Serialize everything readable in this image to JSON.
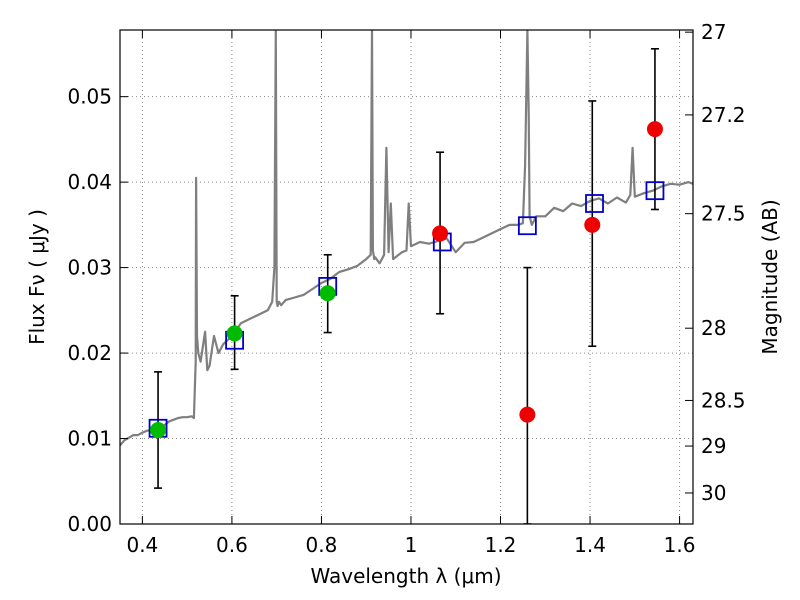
{
  "chart_data": {
    "type": "scatter",
    "xlabel": "Wavelength  λ (μm)",
    "ylabel": "Flux  Fν  ( μJy )",
    "ylabel_right": "Magnitude (AB)",
    "xlim": [
      0.35,
      1.63
    ],
    "ylim": [
      0.0,
      0.0578
    ],
    "grid": true,
    "x_ticks": [
      {
        "value": 0.4,
        "label": "0.4"
      },
      {
        "value": 0.6,
        "label": "0.6"
      },
      {
        "value": 0.8,
        "label": "0.8"
      },
      {
        "value": 1.0,
        "label": "1"
      },
      {
        "value": 1.2,
        "label": "1.2"
      },
      {
        "value": 1.4,
        "label": "1.4"
      },
      {
        "value": 1.6,
        "label": "1.6"
      }
    ],
    "y_ticks": [
      {
        "value": 0.0,
        "label": "0.00"
      },
      {
        "value": 0.01,
        "label": "0.01"
      },
      {
        "value": 0.02,
        "label": "0.02"
      },
      {
        "value": 0.03,
        "label": "0.03"
      },
      {
        "value": 0.04,
        "label": "0.04"
      },
      {
        "value": 0.05,
        "label": "0.05"
      }
    ],
    "right_ticks": [
      {
        "value": 27.0,
        "label": "27"
      },
      {
        "value": 27.2,
        "label": "27.2"
      },
      {
        "value": 27.5,
        "label": "27.5"
      },
      {
        "value": 28.0,
        "label": "28"
      },
      {
        "value": 28.5,
        "label": "28.5"
      },
      {
        "value": 29.0,
        "label": "29"
      },
      {
        "value": 30.0,
        "label": "30"
      }
    ],
    "colors": {
      "model_spectrum": "#7f7f7f",
      "model_photometry": "#0000cc",
      "observed_optical": "#00bb00",
      "observed_nir": "#ee0000",
      "error_bar": "#000000",
      "grid": "#888888"
    },
    "model_spectrum": {
      "x": [
        0.35,
        0.36,
        0.37,
        0.38,
        0.39,
        0.4,
        0.41,
        0.42,
        0.43,
        0.44,
        0.45,
        0.46,
        0.47,
        0.48,
        0.49,
        0.5,
        0.51,
        0.515,
        0.519,
        0.52,
        0.522,
        0.525,
        0.53,
        0.54,
        0.545,
        0.55,
        0.56,
        0.57,
        0.58,
        0.59,
        0.6,
        0.62,
        0.64,
        0.66,
        0.68,
        0.69,
        0.695,
        0.698,
        0.7,
        0.702,
        0.705,
        0.71,
        0.72,
        0.74,
        0.76,
        0.78,
        0.8,
        0.82,
        0.84,
        0.86,
        0.88,
        0.9,
        0.91,
        0.913,
        0.915,
        0.918,
        0.92,
        0.93,
        0.94,
        0.945,
        0.95,
        0.955,
        0.96,
        0.98,
        0.99,
        0.995,
        1.0,
        1.02,
        1.04,
        1.06,
        1.08,
        1.1,
        1.12,
        1.14,
        1.16,
        1.18,
        1.2,
        1.22,
        1.24,
        1.25,
        1.255,
        1.26,
        1.263,
        1.265,
        1.27,
        1.28,
        1.3,
        1.32,
        1.34,
        1.36,
        1.38,
        1.4,
        1.42,
        1.44,
        1.46,
        1.48,
        1.49,
        1.495,
        1.5,
        1.52,
        1.54,
        1.56,
        1.58,
        1.6,
        1.62,
        1.63
      ],
      "y": [
        0.0092,
        0.0098,
        0.0101,
        0.0104,
        0.0104,
        0.0107,
        0.0109,
        0.011,
        0.0112,
        0.0114,
        0.0116,
        0.012,
        0.0122,
        0.0124,
        0.0125,
        0.0125,
        0.0126,
        0.0124,
        0.019,
        0.0405,
        0.022,
        0.02,
        0.019,
        0.0225,
        0.018,
        0.0185,
        0.022,
        0.02,
        0.021,
        0.0215,
        0.022,
        0.0235,
        0.024,
        0.0245,
        0.025,
        0.026,
        0.03,
        0.0578,
        0.026,
        0.0255,
        0.026,
        0.0256,
        0.0262,
        0.0265,
        0.0268,
        0.0275,
        0.0282,
        0.0287,
        0.0295,
        0.0298,
        0.0302,
        0.031,
        0.0315,
        0.0578,
        0.032,
        0.031,
        0.0312,
        0.0305,
        0.0315,
        0.044,
        0.0318,
        0.0375,
        0.031,
        0.0318,
        0.032,
        0.0375,
        0.0325,
        0.033,
        0.0328,
        0.0331,
        0.0334,
        0.0318,
        0.0329,
        0.033,
        0.0335,
        0.034,
        0.0345,
        0.035,
        0.035,
        0.0352,
        0.042,
        0.0578,
        0.048,
        0.036,
        0.035,
        0.036,
        0.036,
        0.037,
        0.0366,
        0.0375,
        0.0372,
        0.0378,
        0.0381,
        0.0375,
        0.0382,
        0.0376,
        0.0385,
        0.044,
        0.0383,
        0.0387,
        0.039,
        0.0395,
        0.0398,
        0.0397,
        0.04,
        0.0398
      ]
    },
    "model_photometry": {
      "x": [
        0.435,
        0.606,
        0.814,
        1.07,
        1.26,
        1.41,
        1.545
      ],
      "y": [
        0.0112,
        0.0215,
        0.0278,
        0.033,
        0.0349,
        0.0375,
        0.039
      ]
    },
    "observed": [
      {
        "x": 0.435,
        "y": 0.011,
        "err_low": 0.0042,
        "err_high": 0.0178,
        "band": "optical"
      },
      {
        "x": 0.606,
        "y": 0.0223,
        "err_low": 0.0181,
        "err_high": 0.0267,
        "band": "optical"
      },
      {
        "x": 0.814,
        "y": 0.027,
        "err_low": 0.0224,
        "err_high": 0.0315,
        "band": "optical"
      },
      {
        "x": 1.065,
        "y": 0.034,
        "err_low": 0.0246,
        "err_high": 0.0435,
        "band": "nir"
      },
      {
        "x": 1.26,
        "y": 0.0128,
        "err_low": 0.0,
        "err_high": 0.03,
        "band": "nir"
      },
      {
        "x": 1.405,
        "y": 0.035,
        "err_low": 0.0208,
        "err_high": 0.0495,
        "band": "nir"
      },
      {
        "x": 1.545,
        "y": 0.0462,
        "err_low": 0.0368,
        "err_high": 0.0556,
        "band": "nir"
      }
    ]
  }
}
